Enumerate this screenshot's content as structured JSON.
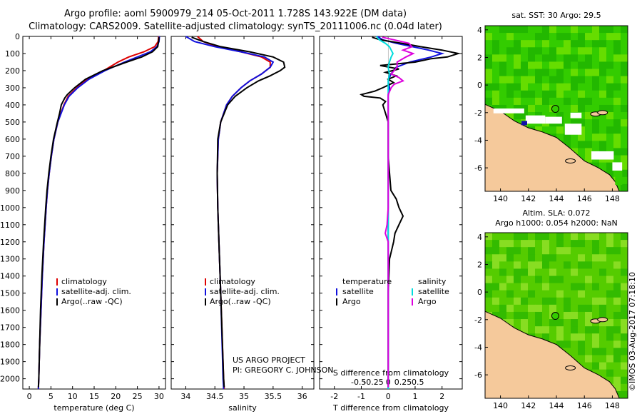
{
  "title_line1": "Argo profile: aoml 5900979_214 05-Oct-2011 1.728S 143.922E (DM data)",
  "title_line2": "Climatology: CARS2009. Satellite-adjusted climatology: synTS_20111006.nc (0.04d later)",
  "note_line1": "US ARGO PROJECT",
  "note_line2": "PI: GREGORY C. JOHNSON",
  "stamp": "©IMOS 03-Aug-2017 07:18:10",
  "colors": {
    "climatology": "#dd0000",
    "satellite": "#1010dd",
    "argo": "#000000",
    "salinity_sat": "#00dddd",
    "salinity_argo": "#dd00dd",
    "land": "#f5c99b",
    "ocean_green": "#33cc00"
  },
  "chart_data": [
    {
      "id": "temperature",
      "type": "line",
      "xlabel": "temperature (deg C)",
      "ylabel": "",
      "xlim": [
        -1.5,
        31.5
      ],
      "ylim": [
        2060,
        0
      ],
      "xticks": [
        0,
        5,
        10,
        15,
        20,
        25,
        30
      ],
      "xtick_labels": [
        "0",
        "5",
        "10",
        "15",
        "20",
        "25",
        "30"
      ],
      "yticks": [
        0,
        100,
        200,
        300,
        400,
        500,
        600,
        700,
        800,
        900,
        1000,
        1100,
        1200,
        1300,
        1400,
        1500,
        1600,
        1700,
        1800,
        1900,
        2000
      ],
      "legend": [
        "climatology",
        "satellite-adj. clim.",
        "Argo(..raw -QC)"
      ],
      "series": [
        {
          "name": "climatology",
          "color_key": "climatology",
          "depth": [
            0,
            30,
            60,
            90,
            120,
            150,
            200,
            250,
            300,
            350,
            400,
            500,
            600,
            700,
            800,
            900,
            1000,
            1200,
            1400,
            1600,
            1800,
            2000,
            2060
          ],
          "values": [
            29.9,
            29.8,
            29.0,
            26.5,
            23.0,
            20.5,
            17.2,
            13.5,
            11.0,
            9.0,
            8.0,
            6.6,
            5.7,
            5.1,
            4.6,
            4.2,
            3.9,
            3.4,
            3.0,
            2.7,
            2.4,
            2.2,
            2.1
          ]
        },
        {
          "name": "satellite-adj. clim.",
          "color_key": "satellite",
          "depth": [
            0,
            30,
            60,
            90,
            120,
            150,
            200,
            250,
            300,
            350,
            400,
            500,
            600,
            700,
            800,
            900,
            1000,
            1200,
            1400,
            1600,
            1800,
            2000,
            2060
          ],
          "values": [
            30.1,
            30.0,
            29.5,
            28.0,
            25.0,
            22.0,
            17.5,
            13.8,
            11.2,
            9.2,
            8.1,
            6.6,
            5.7,
            5.1,
            4.6,
            4.2,
            3.9,
            3.4,
            3.0,
            2.7,
            2.4,
            2.2,
            2.1
          ]
        },
        {
          "name": "Argo(..raw -QC)",
          "color_key": "argo",
          "depth": [
            5,
            30,
            60,
            90,
            120,
            150,
            200,
            250,
            300,
            340,
            360,
            400,
            450,
            500,
            600,
            700,
            800,
            900,
            1000,
            1200,
            1400,
            1600,
            1800,
            2000,
            2050
          ],
          "values": [
            30.0,
            29.9,
            29.7,
            28.5,
            26.0,
            22.5,
            17.0,
            13.0,
            10.5,
            8.8,
            8.2,
            7.4,
            7.0,
            6.5,
            5.6,
            5.0,
            4.5,
            4.1,
            3.8,
            3.3,
            2.9,
            2.6,
            2.4,
            2.2,
            2.1
          ]
        }
      ]
    },
    {
      "id": "salinity",
      "type": "line",
      "xlabel": "salinity",
      "xlim": [
        33.75,
        36.2
      ],
      "ylim": [
        2060,
        0
      ],
      "xticks": [
        34,
        34.5,
        35,
        35.5,
        36
      ],
      "xtick_labels": [
        "34",
        "34.5",
        "35",
        "35.5",
        "36"
      ],
      "legend": [
        "climatology",
        "satellite-adj. clim.",
        "Argo(..raw -QC)"
      ],
      "series": [
        {
          "name": "climatology",
          "color_key": "climatology",
          "depth": [
            0,
            30,
            60,
            90,
            120,
            150,
            180,
            220,
            260,
            300,
            350,
            400,
            500,
            600,
            800,
            1000,
            1200,
            1500,
            2000,
            2060
          ],
          "values": [
            34.2,
            34.3,
            34.55,
            34.95,
            35.3,
            35.45,
            35.45,
            35.3,
            35.1,
            34.95,
            34.8,
            34.7,
            34.6,
            34.56,
            34.54,
            34.55,
            34.57,
            34.6,
            34.65,
            34.66
          ]
        },
        {
          "name": "satellite-adj. clim.",
          "color_key": "satellite",
          "depth": [
            0,
            30,
            60,
            90,
            120,
            150,
            180,
            220,
            260,
            300,
            350,
            400,
            500,
            600,
            800,
            1000,
            1200,
            1500,
            2000,
            2060
          ],
          "values": [
            34.0,
            34.15,
            34.5,
            34.95,
            35.35,
            35.5,
            35.45,
            35.3,
            35.1,
            34.95,
            34.8,
            34.7,
            34.6,
            34.56,
            34.54,
            34.55,
            34.57,
            34.6,
            34.64,
            34.65
          ]
        },
        {
          "name": "Argo(..raw -QC)",
          "color_key": "argo",
          "depth": [
            5,
            30,
            60,
            90,
            120,
            150,
            180,
            200,
            230,
            260,
            300,
            350,
            400,
            500,
            600,
            800,
            1000,
            1200,
            1500,
            2000,
            2050
          ],
          "values": [
            34.1,
            34.3,
            34.6,
            35.1,
            35.5,
            35.68,
            35.7,
            35.62,
            35.45,
            35.25,
            35.05,
            34.85,
            34.72,
            34.6,
            34.55,
            34.54,
            34.55,
            34.57,
            34.6,
            34.65,
            34.66
          ]
        }
      ]
    },
    {
      "id": "difference",
      "type": "line",
      "xlabel": "T difference from climatology",
      "top_axis_label": "S difference from climatology",
      "xlim": [
        -2.55,
        2.75
      ],
      "ylim": [
        2060,
        0
      ],
      "xticks": [
        -2,
        -1,
        0,
        1,
        2
      ],
      "xtick_labels": [
        "-2",
        "-1",
        "0",
        "1",
        "2"
      ],
      "sticks": [
        -0.5,
        -0.25,
        0,
        0.25,
        0.5
      ],
      "stick_labels": [
        "-0.5",
        "-0.25",
        "0",
        "0.25",
        "0.5"
      ],
      "legend_temperature": "temperature",
      "legend_salinity": "salinity",
      "legend_satellite": "satellite",
      "legend_argo": "Argo",
      "series": [
        {
          "name": "satellite",
          "group": "temperature",
          "color_key": "satellite",
          "depth": [
            0,
            20,
            40,
            60,
            80,
            100,
            120,
            150,
            180,
            220,
            260,
            300,
            350,
            400,
            500,
            600,
            800,
            1000,
            1200,
            1500,
            2000,
            2060
          ],
          "values": [
            -0.4,
            -0.2,
            0.3,
            0.9,
            1.5,
            2.0,
            1.6,
            0.8,
            0.3,
            0.1,
            0.0,
            0.05,
            0.0,
            0.0,
            0.0,
            0.0,
            0.0,
            0.0,
            0.0,
            0.0,
            0.0,
            0.0
          ]
        },
        {
          "name": "Argo",
          "group": "temperature",
          "color_key": "argo",
          "depth": [
            5,
            20,
            40,
            60,
            80,
            100,
            120,
            130,
            150,
            170,
            190,
            210,
            230,
            250,
            270,
            300,
            320,
            340,
            350,
            360,
            380,
            400,
            450,
            500,
            600,
            700,
            800,
            900,
            950,
            1000,
            1050,
            1100,
            1150,
            1200,
            1300,
            1500,
            1800,
            2000,
            2050
          ],
          "values": [
            -0.6,
            -0.3,
            0.5,
            1.2,
            2.0,
            2.6,
            2.2,
            1.6,
            1.0,
            -0.3,
            0.4,
            -0.1,
            0.3,
            0.0,
            0.2,
            -0.2,
            -0.5,
            -1.0,
            -0.9,
            -0.3,
            -0.1,
            -0.2,
            -0.1,
            0.0,
            0.0,
            0.0,
            0.05,
            0.1,
            0.3,
            0.4,
            0.55,
            0.4,
            0.25,
            0.2,
            0.05,
            0.0,
            0.0,
            0.0,
            0.0
          ]
        },
        {
          "name": "satellite",
          "group": "salinity",
          "color_key": "salinity_sat",
          "depth": [
            0,
            20,
            40,
            60,
            80,
            100,
            120,
            150,
            180,
            220,
            260,
            300,
            400,
            500,
            800,
            1000,
            1500,
            2000,
            2060
          ],
          "values": [
            -0.2,
            -0.15,
            -0.05,
            0.02,
            0.05,
            0.08,
            0.05,
            0.02,
            0.0,
            0.02,
            0.0,
            0.0,
            0.0,
            0.0,
            0.0,
            0.0,
            0.0,
            0.0,
            0.0
          ]
        },
        {
          "name": "Argo",
          "group": "salinity",
          "color_key": "salinity_argo",
          "depth": [
            5,
            20,
            40,
            60,
            80,
            100,
            120,
            150,
            180,
            200,
            220,
            240,
            260,
            280,
            300,
            340,
            400,
            500,
            600,
            800,
            1000,
            1100,
            1150,
            1200,
            1500,
            2000,
            2050
          ],
          "values": [
            -0.1,
            0.1,
            0.35,
            0.4,
            0.25,
            0.42,
            0.3,
            0.15,
            0.15,
            0.1,
            0.05,
            0.18,
            0.25,
            0.1,
            0.05,
            0.0,
            0.0,
            0.0,
            0.0,
            0.0,
            0.0,
            -0.02,
            -0.05,
            0.0,
            0.0,
            0.0,
            0.0
          ]
        }
      ]
    }
  ],
  "maps": [
    {
      "id": "sst",
      "title": "sat. SST: 30 Argo: 29.5",
      "xticks": [
        "140",
        "142",
        "144",
        "146",
        "148"
      ],
      "yticks": [
        "4",
        "2",
        "0",
        "-2",
        "-4",
        "-6"
      ],
      "xlim": [
        138.9,
        149.1
      ],
      "ylim": [
        -7.7,
        4.3
      ],
      "marker": {
        "lon": 143.922,
        "lat": -1.728
      }
    },
    {
      "id": "sla",
      "title": "Altim. SLA: 0.072",
      "subtitle": "Argo h1000: 0.054 h2000: NaN",
      "xticks": [
        "140",
        "142",
        "144",
        "146",
        "148"
      ],
      "yticks": [
        "4",
        "2",
        "0",
        "-2",
        "-4",
        "-6"
      ],
      "xlim": [
        138.9,
        149.1
      ],
      "ylim": [
        -7.7,
        4.3
      ],
      "marker": {
        "lon": 143.922,
        "lat": -1.728
      }
    }
  ]
}
